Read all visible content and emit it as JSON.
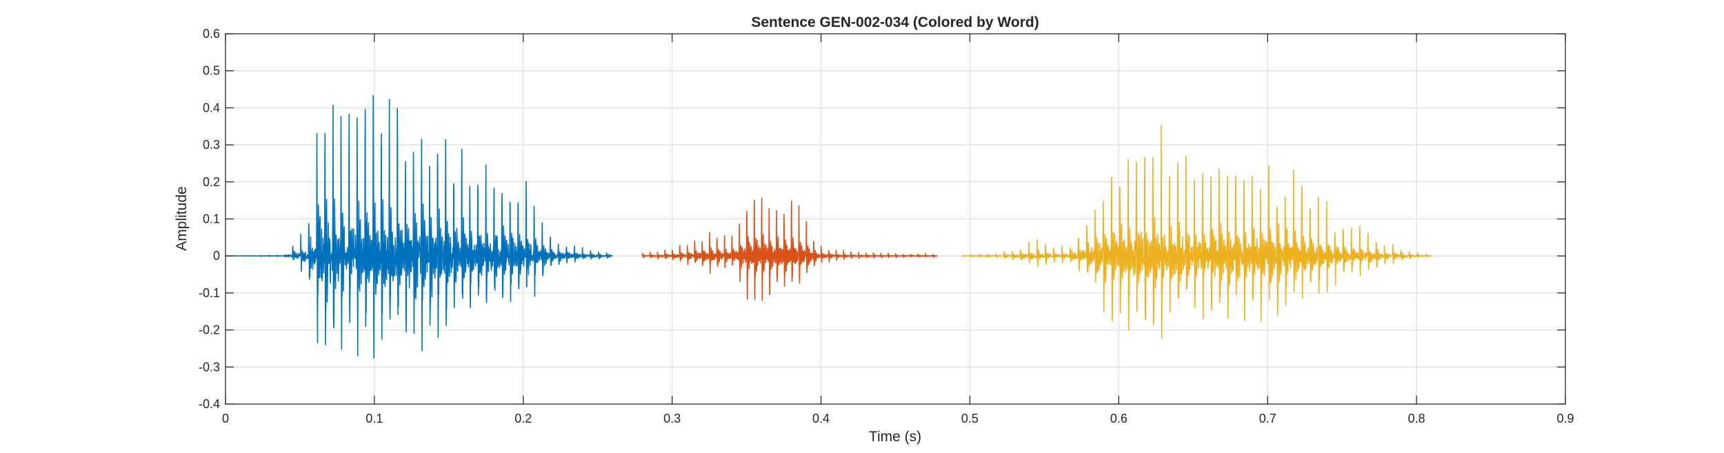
{
  "chart_data": {
    "type": "line",
    "title": "Sentence GEN-002-034 (Colored by Word)",
    "xlabel": "Time (s)",
    "ylabel": "Amplitude",
    "xlim": [
      0,
      0.9
    ],
    "ylim": [
      -0.4,
      0.6
    ],
    "xticks": [
      "0",
      "0.1",
      "0.2",
      "0.3",
      "0.4",
      "0.5",
      "0.6",
      "0.7",
      "0.8",
      "0.9"
    ],
    "yticks": [
      "-0.4",
      "-0.3",
      "-0.2",
      "-0.1",
      "0",
      "0.1",
      "0.2",
      "0.3",
      "0.4",
      "0.5",
      "0.6"
    ],
    "grid": true,
    "legend": "none",
    "series": [
      {
        "color": "#0072BD",
        "t_start": 0.0,
        "t_end": 0.26,
        "onset": 0.045,
        "pitch_hz": 185,
        "envelope": [
          [
            0.0,
            0.0
          ],
          [
            0.04,
            0.004
          ],
          [
            0.046,
            0.04
          ],
          [
            0.055,
            0.1
          ],
          [
            0.062,
            0.45
          ],
          [
            0.065,
            0.55
          ],
          [
            0.08,
            0.44
          ],
          [
            0.1,
            0.5
          ],
          [
            0.12,
            0.47
          ],
          [
            0.14,
            0.42
          ],
          [
            0.16,
            0.32
          ],
          [
            0.18,
            0.27
          ],
          [
            0.2,
            0.24
          ],
          [
            0.21,
            0.16
          ],
          [
            0.22,
            0.06
          ],
          [
            0.24,
            0.025
          ],
          [
            0.26,
            0.012
          ]
        ],
        "neg_ratio": 0.62
      },
      {
        "color": "#D95319",
        "t_start": 0.28,
        "t_end": 0.478,
        "onset": 0.28,
        "pitch_hz": 200,
        "envelope": [
          [
            0.28,
            0.008
          ],
          [
            0.3,
            0.02
          ],
          [
            0.32,
            0.055
          ],
          [
            0.33,
            0.08
          ],
          [
            0.335,
            0.06
          ],
          [
            0.34,
            0.06
          ],
          [
            0.35,
            0.17
          ],
          [
            0.355,
            0.2
          ],
          [
            0.37,
            0.16
          ],
          [
            0.38,
            0.16
          ],
          [
            0.39,
            0.12
          ],
          [
            0.395,
            0.07
          ],
          [
            0.4,
            0.03
          ],
          [
            0.42,
            0.012
          ],
          [
            0.45,
            0.008
          ],
          [
            0.478,
            0.006
          ]
        ],
        "neg_ratio": 0.7
      },
      {
        "color": "#EDB120",
        "t_start": 0.495,
        "t_end": 0.81,
        "onset": 0.495,
        "pitch_hz": 180,
        "envelope": [
          [
            0.495,
            0.003
          ],
          [
            0.52,
            0.01
          ],
          [
            0.535,
            0.03
          ],
          [
            0.545,
            0.05
          ],
          [
            0.555,
            0.03
          ],
          [
            0.565,
            0.03
          ],
          [
            0.575,
            0.08
          ],
          [
            0.585,
            0.2
          ],
          [
            0.59,
            0.26
          ],
          [
            0.6,
            0.3
          ],
          [
            0.61,
            0.39
          ],
          [
            0.62,
            0.44
          ],
          [
            0.63,
            0.36
          ],
          [
            0.65,
            0.3
          ],
          [
            0.67,
            0.31
          ],
          [
            0.69,
            0.3
          ],
          [
            0.71,
            0.27
          ],
          [
            0.73,
            0.2
          ],
          [
            0.75,
            0.1
          ],
          [
            0.77,
            0.07
          ],
          [
            0.78,
            0.04
          ],
          [
            0.8,
            0.01
          ],
          [
            0.81,
            0.004
          ]
        ],
        "neg_ratio": 0.68
      }
    ]
  }
}
